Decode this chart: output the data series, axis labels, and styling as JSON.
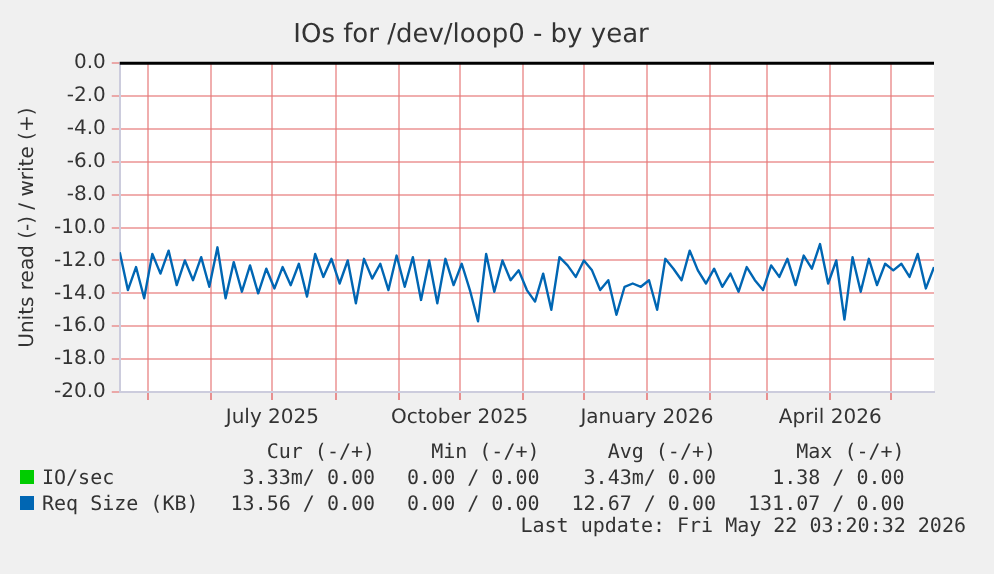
{
  "chart_data": {
    "type": "line",
    "title": "IOs for /dev/loop0 - by year",
    "ylabel": "Units read (-) / write (+)",
    "x": [
      "2025-04-17",
      "2025-04-21",
      "2025-04-25",
      "2025-04-29",
      "2025-05-03",
      "2025-05-07",
      "2025-05-11",
      "2025-05-15",
      "2025-05-19",
      "2025-05-23",
      "2025-05-27",
      "2025-05-31",
      "2025-06-04",
      "2025-06-08",
      "2025-06-12",
      "2025-06-16",
      "2025-06-20",
      "2025-06-24",
      "2025-06-28",
      "2025-07-02",
      "2025-07-06",
      "2025-07-10",
      "2025-07-14",
      "2025-07-18",
      "2025-07-22",
      "2025-07-26",
      "2025-07-30",
      "2025-08-03",
      "2025-08-07",
      "2025-08-11",
      "2025-08-15",
      "2025-08-19",
      "2025-08-23",
      "2025-08-27",
      "2025-08-31",
      "2025-09-04",
      "2025-09-08",
      "2025-09-12",
      "2025-09-16",
      "2025-09-20",
      "2025-09-24",
      "2025-09-28",
      "2025-10-02",
      "2025-10-06",
      "2025-10-10",
      "2025-10-14",
      "2025-10-18",
      "2025-10-22",
      "2025-10-26",
      "2025-10-30",
      "2025-11-03",
      "2025-11-07",
      "2025-11-11",
      "2025-11-15",
      "2025-11-19",
      "2025-11-23",
      "2025-11-27",
      "2025-12-01",
      "2025-12-05",
      "2025-12-09",
      "2025-12-13",
      "2025-12-17",
      "2025-12-21",
      "2025-12-25",
      "2025-12-29",
      "2026-01-02",
      "2026-01-06",
      "2026-01-10",
      "2026-01-14",
      "2026-01-18",
      "2026-01-22",
      "2026-01-26",
      "2026-01-30",
      "2026-02-03",
      "2026-02-07",
      "2026-02-11",
      "2026-02-15",
      "2026-02-19",
      "2026-02-23",
      "2026-02-27",
      "2026-03-03",
      "2026-03-07",
      "2026-03-11",
      "2026-03-15",
      "2026-03-19",
      "2026-03-23",
      "2026-03-27",
      "2026-03-31",
      "2026-04-04",
      "2026-04-08",
      "2026-04-12",
      "2026-04-16",
      "2026-04-20",
      "2026-04-24",
      "2026-04-28",
      "2026-05-02",
      "2026-05-06",
      "2026-05-10",
      "2026-05-14",
      "2026-05-18",
      "2026-05-22"
    ],
    "series": [
      {
        "name": "IO/sec",
        "color": "#00cc00",
        "values": [
          null,
          null,
          null,
          null,
          null,
          null,
          null,
          null,
          null,
          null,
          null,
          null,
          null,
          null,
          null,
          null,
          null,
          null,
          null,
          null,
          null,
          null,
          null,
          null,
          null,
          null,
          null,
          null,
          null,
          null,
          null,
          null,
          null,
          null,
          null,
          null,
          null,
          null,
          null,
          null,
          null,
          null,
          null,
          null,
          null,
          null,
          null,
          null,
          null,
          null,
          null,
          null,
          null,
          null,
          null,
          null,
          null,
          null,
          null,
          null,
          null,
          null,
          null,
          null,
          null,
          null,
          null,
          null,
          null,
          null,
          null,
          null,
          null,
          null,
          null,
          null,
          null,
          null,
          null,
          null,
          null,
          null,
          null,
          null,
          null,
          null,
          null,
          null,
          null,
          null,
          null,
          null,
          null,
          null,
          null,
          null,
          null,
          null,
          null,
          null,
          null
        ]
      },
      {
        "name": "Req Size (KB)",
        "color": "#0066b3",
        "values": [
          -11.5,
          -13.8,
          -12.4,
          -14.3,
          -11.6,
          -12.8,
          -11.4,
          -13.5,
          -12.0,
          -13.2,
          -11.8,
          -13.6,
          -11.2,
          -14.3,
          -12.1,
          -13.9,
          -12.3,
          -14.0,
          -12.5,
          -13.7,
          -12.4,
          -13.5,
          -12.2,
          -14.2,
          -11.6,
          -13.0,
          -11.9,
          -13.4,
          -12.0,
          -14.6,
          -11.9,
          -13.1,
          -12.2,
          -13.8,
          -11.7,
          -13.6,
          -11.8,
          -14.4,
          -12.0,
          -14.6,
          -11.9,
          -13.5,
          -12.2,
          -13.8,
          -15.7,
          -11.6,
          -13.9,
          -12.0,
          -13.2,
          -12.6,
          -13.8,
          -14.5,
          -12.8,
          -15.0,
          -11.8,
          -12.3,
          -13.0,
          -12.0,
          -12.6,
          -13.8,
          -13.2,
          -15.3,
          -13.6,
          -13.4,
          -13.6,
          -13.2,
          -15.0,
          -11.9,
          -12.5,
          -13.2,
          -11.4,
          -12.6,
          -13.4,
          -12.5,
          -13.6,
          -12.8,
          -13.9,
          -12.4,
          -13.2,
          -13.8,
          -12.3,
          -13.0,
          -11.9,
          -13.5,
          -11.7,
          -12.5,
          -11.0,
          -13.4,
          -12.0,
          -15.6,
          -11.8,
          -13.9,
          -11.9,
          -13.5,
          -12.2,
          -12.6,
          -12.2,
          -13.0,
          -11.6,
          -13.7,
          -12.4
        ]
      }
    ],
    "xlim": [
      "2025-04-17",
      "2026-05-22"
    ],
    "xticks": [
      {
        "value": "2025-05-01",
        "label": null
      },
      {
        "value": "2025-06-01",
        "label": null
      },
      {
        "value": "2025-07-01",
        "label": "July 2025"
      },
      {
        "value": "2025-08-01",
        "label": null
      },
      {
        "value": "2025-09-01",
        "label": null
      },
      {
        "value": "2025-10-01",
        "label": "October 2025"
      },
      {
        "value": "2025-11-01",
        "label": null
      },
      {
        "value": "2025-12-01",
        "label": null
      },
      {
        "value": "2026-01-01",
        "label": "January 2026"
      },
      {
        "value": "2026-02-01",
        "label": null
      },
      {
        "value": "2026-03-01",
        "label": null
      },
      {
        "value": "2026-04-01",
        "label": "April 2026"
      },
      {
        "value": "2026-05-01",
        "label": null
      }
    ],
    "ylim": [
      -20,
      0
    ],
    "yticks": [
      {
        "value": -20,
        "label": "-20.0"
      },
      {
        "value": -18,
        "label": "-18.0"
      },
      {
        "value": -16,
        "label": "-16.0"
      },
      {
        "value": -14,
        "label": "-14.0"
      },
      {
        "value": -12,
        "label": "-12.0"
      },
      {
        "value": -10,
        "label": "-10.0"
      },
      {
        "value": -8,
        "label": "-8.0"
      },
      {
        "value": -6,
        "label": "-6.0"
      },
      {
        "value": -4,
        "label": "-4.0"
      },
      {
        "value": -2,
        "label": "-2.0"
      },
      {
        "value": 0,
        "label": "0.0"
      }
    ],
    "grid": true,
    "legend": "bottom",
    "marker": "none",
    "line_style": "solid",
    "ref_lines": [
      {
        "axis": "y",
        "value": 0,
        "color": "#000000"
      }
    ],
    "annotations": [
      "Cur (-/+)",
      "Min (-/+)",
      "Avg (-/+)",
      "Max (-/+)",
      "3.33m/ 0.00",
      "0.00 / 0.00",
      "3.43m/ 0.00",
      "1.38 / 0.00",
      "13.56 / 0.00",
      "0.00 / 0.00",
      "12.67 / 0.00",
      "131.07 / 0.00",
      "Last update: Fri May 22 03:20:32 2026"
    ]
  }
}
